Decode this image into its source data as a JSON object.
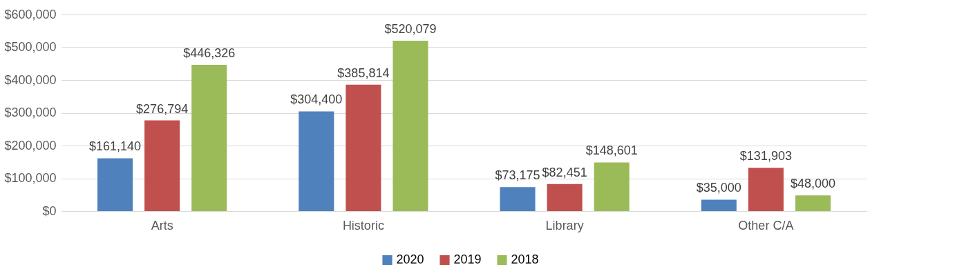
{
  "chart_data": {
    "type": "bar",
    "categories": [
      "Arts",
      "Historic",
      "Library",
      "Other C/A"
    ],
    "series": [
      {
        "name": "2020",
        "color": "#4f81bd",
        "values": [
          161140,
          304400,
          73175,
          35000
        ],
        "value_labels": [
          "$161,140",
          "$304,400",
          "$73,175",
          "$35,000"
        ]
      },
      {
        "name": "2019",
        "color": "#c0504d",
        "values": [
          276794,
          385814,
          82451,
          131903
        ],
        "value_labels": [
          "$276,794",
          "$385,814",
          "$82,451",
          "$131,903"
        ]
      },
      {
        "name": "2018",
        "color": "#9bbb59",
        "values": [
          446326,
          520079,
          148601,
          48000
        ],
        "value_labels": [
          "$446,326",
          "$520,079",
          "$148,601",
          "$48,000"
        ]
      }
    ],
    "ylim": [
      0,
      600000
    ],
    "yticks": [
      {
        "value": 0,
        "label": "$0"
      },
      {
        "value": 100000,
        "label": "$100,000"
      },
      {
        "value": 200000,
        "label": "$200,000"
      },
      {
        "value": 300000,
        "label": "$300,000"
      },
      {
        "value": 400000,
        "label": "$400,000"
      },
      {
        "value": 500000,
        "label": "$500,000"
      },
      {
        "value": 600000,
        "label": "$600,000"
      }
    ],
    "grid": "y",
    "legend": "bottom"
  }
}
